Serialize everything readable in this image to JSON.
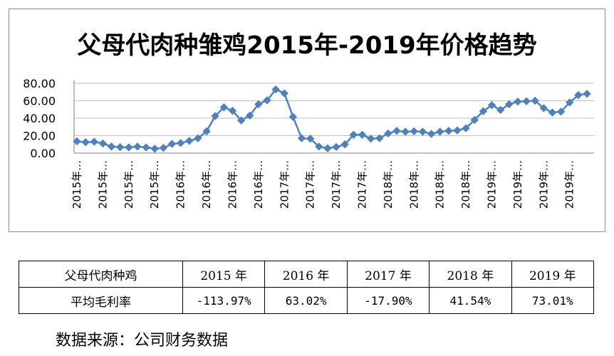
{
  "chart_data": {
    "type": "line",
    "title": "父母代肉种雏鸡2015年-2019年价格趋势",
    "xlabel": "",
    "ylabel": "",
    "ylim": [
      0,
      80
    ],
    "yticks": [
      "80.00",
      "60.00",
      "40.00",
      "20.00",
      "0.00"
    ],
    "xtick_labels": [
      "2015年…",
      "2015年…",
      "2015年…",
      "2015年…",
      "2016年…",
      "2016年…",
      "2016年…",
      "2016年…",
      "2017年…",
      "2017年…",
      "2017年…",
      "2017年…",
      "2018年…",
      "2018年…",
      "2018年…",
      "2018年…",
      "2019年…",
      "2019年…",
      "2019年…",
      "2019年…"
    ],
    "marker": "diamond",
    "color": "#4F81BD",
    "grid": "horizontal",
    "legend": "none",
    "values": [
      13.5,
      12.5,
      13.0,
      11.0,
      7.5,
      6.8,
      6.5,
      7.5,
      6.5,
      5.0,
      6.0,
      10.5,
      11.5,
      14.0,
      17.0,
      25.0,
      42.5,
      52.5,
      48.5,
      37.5,
      43.0,
      56.0,
      60.5,
      73.0,
      68.5,
      41.5,
      17.0,
      16.5,
      7.5,
      5.5,
      7.0,
      10.0,
      21.0,
      21.0,
      16.5,
      17.0,
      22.5,
      25.5,
      24.5,
      25.0,
      24.5,
      22.0,
      24.5,
      25.5,
      26.0,
      28.5,
      38.0,
      48.0,
      55.0,
      49.5,
      56.0,
      59.0,
      59.5,
      60.0,
      51.5,
      46.5,
      47.5,
      58.0,
      66.5,
      68.0
    ]
  },
  "table": {
    "header": [
      "父母代肉种鸡",
      "2015 年",
      "2016 年",
      "2017 年",
      "2018 年",
      "2019 年"
    ],
    "row": [
      "平均毛利率",
      "-113.97%",
      "63.02%",
      "-17.90%",
      "41.54%",
      "73.01%"
    ]
  },
  "source_note": "数据来源：公司财务数据"
}
